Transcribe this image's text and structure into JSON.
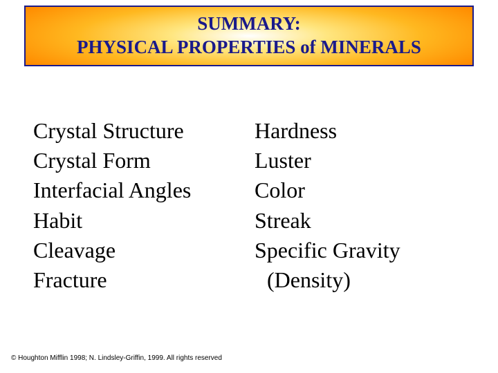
{
  "title": {
    "line1": "SUMMARY:",
    "line2": "PHYSICAL PROPERTIES of MINERALS",
    "text_color": "#1a1a8a",
    "border_color": "#1a1a8a",
    "fontsize": 27,
    "gradient_colors": [
      "#ffffff",
      "#ffe680",
      "#ffb820",
      "#ff8c00",
      "#e67300"
    ]
  },
  "columns": {
    "left": [
      "Crystal Structure",
      "Crystal Form",
      "Interfacial Angles",
      "Habit",
      "Cleavage",
      "Fracture"
    ],
    "right": [
      "Hardness",
      "Luster",
      "Color",
      "Streak",
      "Specific Gravity",
      " (Density)"
    ],
    "fontsize": 32,
    "text_color": "#000000"
  },
  "copyright": "© Houghton Mifflin 1998; N. Lindsley-Griffin, 1999. All rights reserved",
  "background_color": "#ffffff"
}
